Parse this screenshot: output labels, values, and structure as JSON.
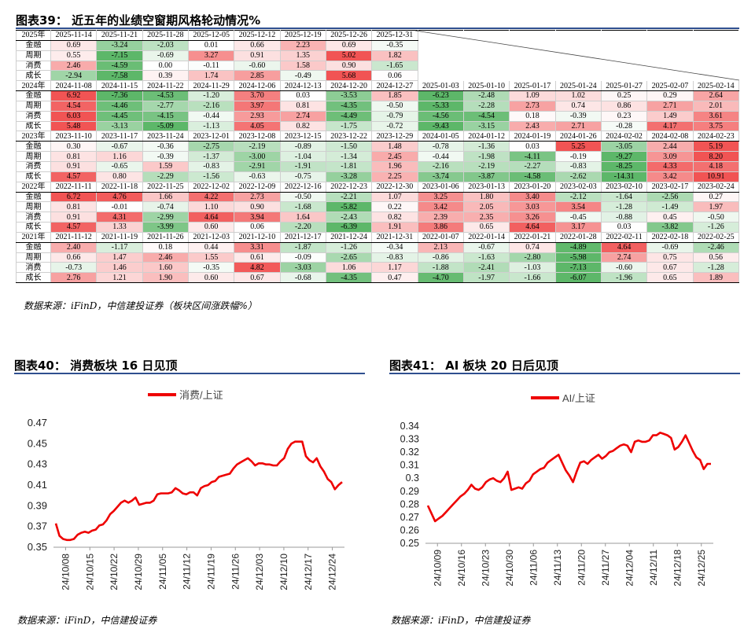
{
  "fig39": {
    "title": "图表39：  近五年的业绩空窗期风格轮动情况%",
    "source": "数据来源：iFinD，中信建投证券（板块区间涨跌幅%）",
    "row_labels": [
      "金融",
      "周期",
      "消费",
      "成长"
    ],
    "blocks": [
      {
        "year": "2025年",
        "dates": [
          "2025-11-14",
          "2025-11-21",
          "2025-11-28",
          "2025-12-05",
          "2025-12-12",
          "2025-12-19",
          "2025-12-26",
          "2025-12-31"
        ],
        "rows": [
          [
            "0.69",
            "-3.24",
            "-2.03",
            "0.01",
            "0.66",
            "2.23",
            "0.69",
            "-0.35"
          ],
          [
            "0.55",
            "-7.15",
            "-0.69",
            "3.27",
            "0.91",
            "1.35",
            "5.02",
            "1.82"
          ],
          [
            "2.46",
            "-4.59",
            "0.00",
            "-0.11",
            "-0.60",
            "1.58",
            "0.90",
            "-1.65"
          ],
          [
            "-2.94",
            "-7.58",
            "0.39",
            "1.74",
            "2.85",
            "-0.49",
            "5.68",
            "0.06"
          ]
        ]
      },
      {
        "year": "2024年",
        "dates": [
          "2024-11-08",
          "2024-11-15",
          "2024-11-22",
          "2024-11-29",
          "2024-12-06",
          "2024-12-13",
          "2024-12-20",
          "2024-12-27",
          "2025-01-03",
          "2025-01-10",
          "2025-01-17",
          "2025-01-24",
          "2025-01-27",
          "2025-02-07",
          "2025-02-14"
        ],
        "rows": [
          [
            "6.92",
            "-7.36",
            "-4.53",
            "-1.20",
            "3.70",
            "0.03",
            "-3.53",
            "1.85",
            "-6.23",
            "-2.48",
            "1.09",
            "1.02",
            "0.25",
            "0.29",
            "2.64"
          ],
          [
            "4.54",
            "-4.46",
            "-2.77",
            "-2.16",
            "3.97",
            "0.81",
            "-4.35",
            "-0.50",
            "-5.33",
            "-2.28",
            "2.73",
            "0.74",
            "0.86",
            "2.71",
            "2.01"
          ],
          [
            "6.03",
            "-4.45",
            "-4.15",
            "-0.44",
            "2.93",
            "2.74",
            "-4.49",
            "-0.79",
            "-4.56",
            "-4.54",
            "0.18",
            "-0.39",
            "0.23",
            "1.49",
            "3.61"
          ],
          [
            "5.48",
            "-3.13",
            "-5.09",
            "-1.13",
            "4.05",
            "0.82",
            "-1.75",
            "-0.72",
            "-9.43",
            "-3.15",
            "2.43",
            "2.71",
            "-0.28",
            "4.17",
            "3.75"
          ]
        ]
      },
      {
        "year": "2023年",
        "dates": [
          "2023-11-10",
          "2023-11-17",
          "2023-11-24",
          "2023-12-01",
          "2023-12-08",
          "2023-12-15",
          "2023-12-22",
          "2023-12-29",
          "2024-01-05",
          "2024-01-12",
          "2024-01-19",
          "2024-01-26",
          "2024-02-02",
          "2024-02-08",
          "2024-02-23"
        ],
        "rows": [
          [
            "0.30",
            "-0.67",
            "-0.36",
            "-2.75",
            "-2.19",
            "-0.89",
            "-1.50",
            "1.48",
            "-0.78",
            "-1.36",
            "0.03",
            "5.25",
            "-3.05",
            "2.44",
            "5.19"
          ],
          [
            "0.81",
            "1.16",
            "-0.39",
            "-1.37",
            "-3.00",
            "-1.04",
            "-1.34",
            "2.45",
            "-0.44",
            "-1.98",
            "-4.11",
            "-0.19",
            "-9.27",
            "3.09",
            "8.20"
          ],
          [
            "0.91",
            "-0.65",
            "1.59",
            "-0.83",
            "-2.91",
            "-1.91",
            "-1.81",
            "1.96",
            "-2.16",
            "-2.19",
            "-2.27",
            "-0.83",
            "-8.25",
            "4.33",
            "4.18"
          ],
          [
            "4.57",
            "0.80",
            "-2.29",
            "-1.56",
            "-0.63",
            "-0.75",
            "-3.28",
            "2.25",
            "-3.74",
            "-3.87",
            "-4.58",
            "-2.62",
            "-14.31",
            "3.42",
            "10.91"
          ]
        ]
      },
      {
        "year": "2022年",
        "dates": [
          "2022-11-11",
          "2022-11-18",
          "2022-11-25",
          "2022-12-02",
          "2022-12-09",
          "2022-12-16",
          "2022-12-23",
          "2022-12-30",
          "2023-01-06",
          "2023-01-13",
          "2023-01-20",
          "2023-02-03",
          "2023-02-10",
          "2023-02-17",
          "2023-02-24"
        ],
        "rows": [
          [
            "6.72",
            "4.76",
            "1.66",
            "4.22",
            "2.73",
            "-0.50",
            "-2.21",
            "1.07",
            "3.25",
            "1.80",
            "3.40",
            "-2.12",
            "-1.64",
            "-2.56",
            "0.27"
          ],
          [
            "0.81",
            "-0.01",
            "-0.74",
            "1.10",
            "0.90",
            "-1.68",
            "-5.82",
            "0.22",
            "3.42",
            "2.05",
            "3.03",
            "3.54",
            "-1.28",
            "-1.49",
            "1.97"
          ],
          [
            "0.91",
            "4.31",
            "-2.99",
            "4.64",
            "3.94",
            "1.64",
            "-2.43",
            "0.82",
            "2.39",
            "2.35",
            "3.26",
            "-0.45",
            "-0.88",
            "0.45",
            "-0.50"
          ],
          [
            "4.57",
            "1.33",
            "-3.99",
            "0.60",
            "0.06",
            "-2.20",
            "-6.39",
            "1.91",
            "3.86",
            "0.65",
            "4.64",
            "3.17",
            "0.03",
            "-3.82",
            "-1.26"
          ]
        ]
      },
      {
        "year": "2021年",
        "dates": [
          "2021-11-12",
          "2021-11-19",
          "2021-11-26",
          "2021-12-03",
          "2021-12-10",
          "2021-12-17",
          "2021-12-24",
          "2021-12-31",
          "2022-01-07",
          "2022-01-14",
          "2022-01-21",
          "2022-01-28",
          "2022-02-11",
          "2022-02-18",
          "2022-02-25"
        ],
        "rows": [
          [
            "2.40",
            "-1.17",
            "0.18",
            "0.44",
            "3.31",
            "-1.87",
            "-1.26",
            "-0.34",
            "2.13",
            "-0.67",
            "0.74",
            "-4.89",
            "4.64",
            "-0.69",
            "-2.46"
          ],
          [
            "0.66",
            "1.47",
            "2.46",
            "1.55",
            "0.61",
            "-0.09",
            "-2.65",
            "-0.83",
            "-0.86",
            "-1.63",
            "-2.80",
            "-5.98",
            "2.74",
            "0.75",
            "0.56"
          ],
          [
            "-0.73",
            "1.46",
            "1.60",
            "-0.35",
            "4.82",
            "-3.03",
            "1.06",
            "1.17",
            "-1.88",
            "-2.41",
            "-1.03",
            "-7.13",
            "-0.60",
            "0.67",
            "-1.28"
          ],
          [
            "2.76",
            "1.21",
            "1.90",
            "0.60",
            "0.67",
            "-0.68",
            "-4.35",
            "0.47",
            "-4.70",
            "-1.97",
            "-1.66",
            "-6.07",
            "-1.96",
            "0.65",
            "1.89"
          ]
        ]
      }
    ]
  },
  "fig40": {
    "title": "图表40：  消费板块 16 日见顶",
    "source": "数据来源：iFinD，中信建投证券",
    "chart_data": {
      "type": "line",
      "series": [
        {
          "name": "消费/上证",
          "color": "#ee0000"
        }
      ],
      "x_tick_labels": [
        "24/10/08",
        "24/10/15",
        "24/10/22",
        "24/10/29",
        "24/11/05",
        "24/11/12",
        "24/11/19",
        "24/11/26",
        "24/12/03",
        "24/12/10",
        "24/12/17",
        "24/12/24"
      ],
      "y_tick_labels": [
        "0.47",
        "0.45",
        "0.43",
        "0.41",
        "0.39",
        "0.37",
        "0.35"
      ],
      "ylim": [
        0.35,
        0.47
      ],
      "values": [
        0.373,
        0.361,
        0.358,
        0.357,
        0.357,
        0.358,
        0.362,
        0.364,
        0.365,
        0.364,
        0.366,
        0.367,
        0.371,
        0.372,
        0.376,
        0.382,
        0.385,
        0.389,
        0.393,
        0.395,
        0.393,
        0.395,
        0.398,
        0.391,
        0.392,
        0.393,
        0.393,
        0.395,
        0.401,
        0.402,
        0.402,
        0.402,
        0.403,
        0.407,
        0.405,
        0.402,
        0.401,
        0.403,
        0.403,
        0.4,
        0.407,
        0.409,
        0.41,
        0.413,
        0.414,
        0.418,
        0.419,
        0.42,
        0.421,
        0.426,
        0.43,
        0.432,
        0.434,
        0.436,
        0.433,
        0.429,
        0.431,
        0.431,
        0.43,
        0.43,
        0.429,
        0.429,
        0.433,
        0.436,
        0.445,
        0.45,
        0.452,
        0.452,
        0.452,
        0.438,
        0.434,
        0.432,
        0.436,
        0.428,
        0.423,
        0.416,
        0.413,
        0.406,
        0.41,
        0.413
      ]
    }
  },
  "fig41": {
    "title": "图表41：  AI 板块 20 日后见顶",
    "source": "数据来源：iFinD，中信建投证券",
    "chart_data": {
      "type": "line",
      "series": [
        {
          "name": "AI/上证",
          "color": "#ee0000"
        }
      ],
      "x_tick_labels": [
        "24/10/09",
        "24/10/16",
        "24/10/23",
        "24/10/30",
        "24/11/06",
        "24/11/13",
        "24/11/20",
        "24/11/27",
        "24/12/04",
        "24/12/11",
        "24/12/18",
        "24/12/25"
      ],
      "y_tick_labels": [
        "0.34",
        "0.33",
        "0.32",
        "0.31",
        "0.3",
        "0.29",
        "0.28",
        "0.27",
        "0.26",
        "0.25"
      ],
      "ylim": [
        0.25,
        0.34
      ],
      "values": [
        0.279,
        0.273,
        0.267,
        0.269,
        0.271,
        0.274,
        0.277,
        0.28,
        0.283,
        0.286,
        0.288,
        0.291,
        0.295,
        0.292,
        0.291,
        0.293,
        0.297,
        0.299,
        0.3,
        0.298,
        0.297,
        0.3,
        0.305,
        0.291,
        0.292,
        0.293,
        0.292,
        0.296,
        0.298,
        0.303,
        0.305,
        0.307,
        0.308,
        0.312,
        0.314,
        0.316,
        0.318,
        0.312,
        0.306,
        0.302,
        0.297,
        0.305,
        0.312,
        0.313,
        0.311,
        0.314,
        0.316,
        0.318,
        0.315,
        0.317,
        0.32,
        0.321,
        0.323,
        0.325,
        0.326,
        0.325,
        0.32,
        0.328,
        0.329,
        0.328,
        0.328,
        0.329,
        0.333,
        0.333,
        0.335,
        0.334,
        0.333,
        0.331,
        0.322,
        0.324,
        0.328,
        0.333,
        0.327,
        0.321,
        0.316,
        0.314,
        0.307,
        0.311,
        0.311
      ]
    }
  }
}
